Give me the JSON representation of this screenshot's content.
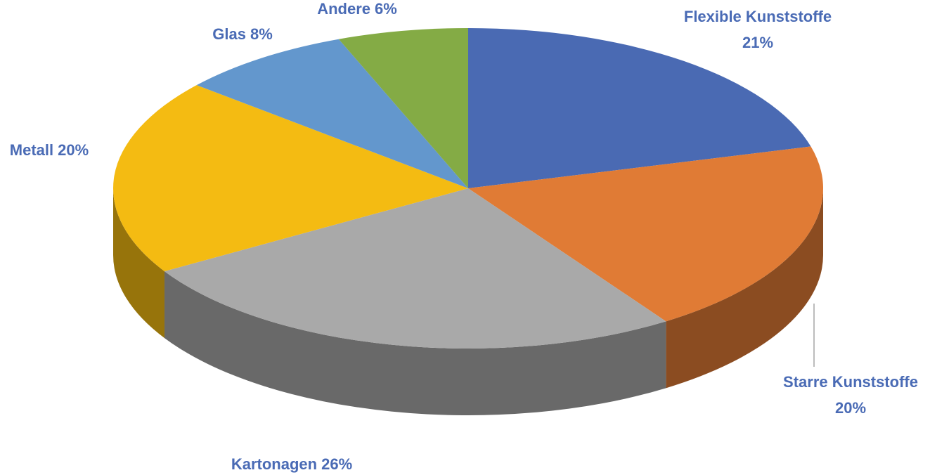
{
  "chart_data": {
    "type": "pie",
    "categories": [
      "Flexible Kunststoffe",
      "Starre Kunststoffe",
      "Kartonagen",
      "Metall",
      "Glas",
      "Andere"
    ],
    "values": [
      21,
      20,
      26,
      20,
      8,
      6
    ],
    "value_labels": [
      "21%",
      "20%",
      "26%",
      "20%",
      "8%",
      "6%"
    ],
    "colors": [
      "#4a6ab3",
      "#e07b35",
      "#a9a9a9",
      "#f4bb12",
      "#6397cd",
      "#84ab45"
    ]
  }
}
